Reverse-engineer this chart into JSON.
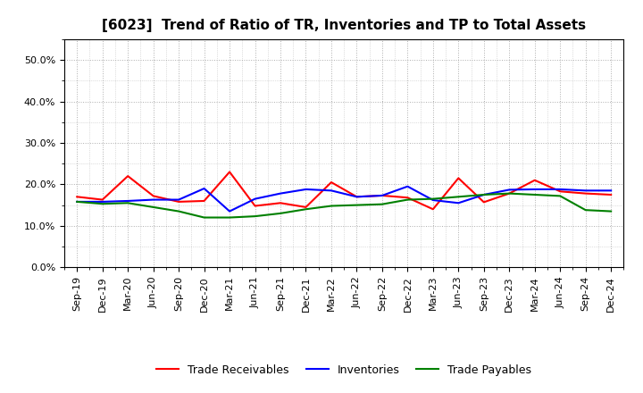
{
  "title": "[6023]  Trend of Ratio of TR, Inventories and TP to Total Assets",
  "ylim": [
    0.0,
    0.55
  ],
  "yticks": [
    0.0,
    0.1,
    0.2,
    0.3,
    0.4,
    0.5
  ],
  "ytick_labels": [
    "0.0%",
    "10.0%",
    "20.0%",
    "30.0%",
    "40.0%",
    "50.0%"
  ],
  "categories": [
    "Sep-19",
    "Dec-19",
    "Mar-20",
    "Jun-20",
    "Sep-20",
    "Dec-20",
    "Mar-21",
    "Jun-21",
    "Sep-21",
    "Dec-21",
    "Mar-22",
    "Jun-22",
    "Sep-22",
    "Dec-22",
    "Mar-23",
    "Jun-23",
    "Sep-23",
    "Dec-23",
    "Mar-24",
    "Jun-24",
    "Sep-24",
    "Dec-24"
  ],
  "trade_receivables": [
    0.17,
    0.163,
    0.22,
    0.172,
    0.158,
    0.16,
    0.23,
    0.148,
    0.155,
    0.145,
    0.205,
    0.17,
    0.173,
    0.168,
    0.14,
    0.215,
    0.157,
    0.178,
    0.21,
    0.183,
    0.178,
    0.175
  ],
  "inventories": [
    0.158,
    0.158,
    0.16,
    0.163,
    0.163,
    0.19,
    0.135,
    0.165,
    0.178,
    0.188,
    0.185,
    0.17,
    0.173,
    0.195,
    0.162,
    0.155,
    0.175,
    0.187,
    0.188,
    0.188,
    0.185,
    0.185
  ],
  "trade_payables": [
    0.158,
    0.153,
    0.155,
    0.145,
    0.135,
    0.12,
    0.12,
    0.123,
    0.13,
    0.14,
    0.148,
    0.15,
    0.152,
    0.163,
    0.165,
    0.17,
    0.175,
    0.178,
    0.175,
    0.172,
    0.138,
    0.135
  ],
  "tr_color": "#ff0000",
  "inv_color": "#0000ff",
  "tp_color": "#008000",
  "background_color": "#ffffff",
  "grid_color": "#999999",
  "title_fontsize": 11,
  "legend_fontsize": 9,
  "tick_fontsize": 8
}
